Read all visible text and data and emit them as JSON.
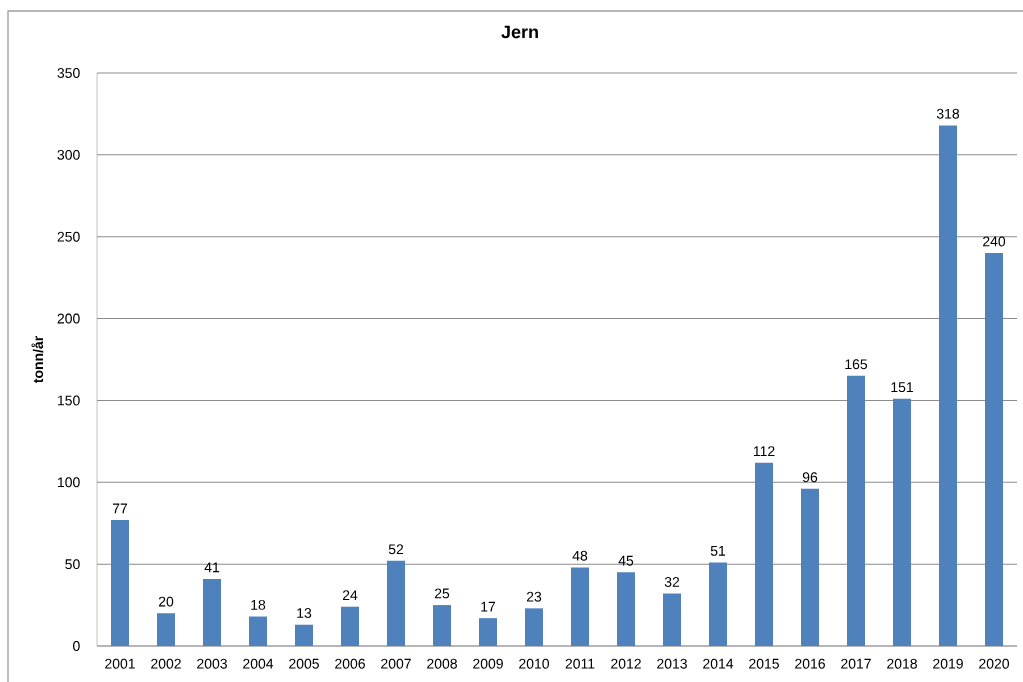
{
  "chart_data": {
    "type": "bar",
    "title": "Jern",
    "ylabel": "tonn/år",
    "categories": [
      "2001",
      "2002",
      "2003",
      "2004",
      "2005",
      "2006",
      "2007",
      "2008",
      "2009",
      "2010",
      "2011",
      "2012",
      "2013",
      "2014",
      "2015",
      "2016",
      "2017",
      "2018",
      "2019",
      "2020"
    ],
    "values": [
      77,
      20,
      41,
      18,
      13,
      24,
      52,
      25,
      17,
      23,
      48,
      45,
      32,
      51,
      112,
      96,
      165,
      151,
      318,
      240
    ],
    "color": "#4f81bd",
    "ylim": [
      0,
      350
    ],
    "yticks": [
      0,
      50,
      100,
      150,
      200,
      250,
      300,
      350
    ],
    "grid": "y",
    "data_labels": true
  }
}
